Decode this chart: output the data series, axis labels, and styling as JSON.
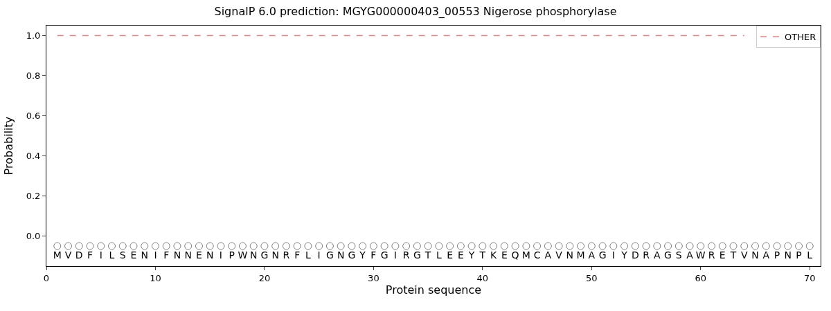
{
  "chart_data": {
    "type": "line",
    "title": "SignalP 6.0 prediction: MGYG000000403_00553 Nigerose phosphorylase",
    "xlabel": "Protein sequence",
    "ylabel": "Probability",
    "x": [
      1,
      2,
      3,
      4,
      5,
      6,
      7,
      8,
      9,
      10,
      11,
      12,
      13,
      14,
      15,
      16,
      17,
      18,
      19,
      20,
      21,
      22,
      23,
      24,
      25,
      26,
      27,
      28,
      29,
      30,
      31,
      32,
      33,
      34,
      35,
      36,
      37,
      38,
      39,
      40,
      41,
      42,
      43,
      44,
      45,
      46,
      47,
      48,
      49,
      50,
      51,
      52,
      53,
      54,
      55,
      56,
      57,
      58,
      59,
      60,
      61,
      62,
      63,
      64,
      65,
      66,
      67,
      68,
      69,
      70
    ],
    "series": [
      {
        "name": "OTHER",
        "color": "#f08080",
        "line_style": "dashed",
        "values": [
          1,
          1,
          1,
          1,
          1,
          1,
          1,
          1,
          1,
          1,
          1,
          1,
          1,
          1,
          1,
          1,
          1,
          1,
          1,
          1,
          1,
          1,
          1,
          1,
          1,
          1,
          1,
          1,
          1,
          1,
          1,
          1,
          1,
          1,
          1,
          1,
          1,
          1,
          1,
          1,
          1,
          1,
          1,
          1,
          1,
          1,
          1,
          1,
          1,
          1,
          1,
          1,
          1,
          1,
          1,
          1,
          1,
          1,
          1,
          1,
          1,
          1,
          1,
          1,
          null,
          null,
          null,
          null,
          null,
          null
        ]
      },
      {
        "type": "scatter",
        "marker": "circle",
        "color": "#808080",
        "values": [
          -0.05,
          -0.05,
          -0.05,
          -0.05,
          -0.05,
          -0.05,
          -0.05,
          -0.05,
          -0.05,
          -0.05,
          -0.05,
          -0.05,
          -0.05,
          -0.05,
          -0.05,
          -0.05,
          -0.05,
          -0.05,
          -0.05,
          -0.05,
          -0.05,
          -0.05,
          -0.05,
          -0.05,
          -0.05,
          -0.05,
          -0.05,
          -0.05,
          -0.05,
          -0.05,
          -0.05,
          -0.05,
          -0.05,
          -0.05,
          -0.05,
          -0.05,
          -0.05,
          -0.05,
          -0.05,
          -0.05,
          -0.05,
          -0.05,
          -0.05,
          -0.05,
          -0.05,
          -0.05,
          -0.05,
          -0.05,
          -0.05,
          -0.05,
          -0.05,
          -0.05,
          -0.05,
          -0.05,
          -0.05,
          -0.05,
          -0.05,
          -0.05,
          -0.05,
          -0.05,
          -0.05,
          -0.05,
          -0.05,
          -0.05,
          -0.05,
          -0.05,
          -0.05,
          -0.05,
          -0.05,
          -0.05
        ],
        "value_labels": [
          "M",
          "V",
          "D",
          "F",
          "I",
          "L",
          "S",
          "E",
          "N",
          "I",
          "F",
          "N",
          "N",
          "E",
          "N",
          "I",
          "P",
          "W",
          "N",
          "G",
          "N",
          "R",
          "F",
          "L",
          "I",
          "G",
          "N",
          "G",
          "Y",
          "F",
          "G",
          "I",
          "R",
          "G",
          "T",
          "L",
          "E",
          "E",
          "Y",
          "T",
          "K",
          "E",
          "Q",
          "M",
          "C",
          "A",
          "V",
          "N",
          "M",
          "A",
          "G",
          "I",
          "Y",
          "D",
          "R",
          "A",
          "G",
          "S",
          "A",
          "W",
          "R",
          "E",
          "T",
          "V",
          "N",
          "A",
          "P",
          "N",
          "P",
          "L"
        ]
      }
    ],
    "xlim": [
      0,
      71
    ],
    "xticks": [
      0,
      10,
      20,
      30,
      40,
      50,
      60,
      70
    ],
    "ylim": [
      -0.15,
      1.05
    ],
    "yticks": [
      {
        "value": 0,
        "label": "0.0"
      },
      {
        "value": 0.2,
        "label": "0.2"
      },
      {
        "value": 0.4,
        "label": "0.4"
      },
      {
        "value": 0.6,
        "label": "0.6"
      },
      {
        "value": 0.8,
        "label": "0.8"
      },
      {
        "value": 1,
        "label": "1.0"
      }
    ],
    "legend": "top right"
  }
}
